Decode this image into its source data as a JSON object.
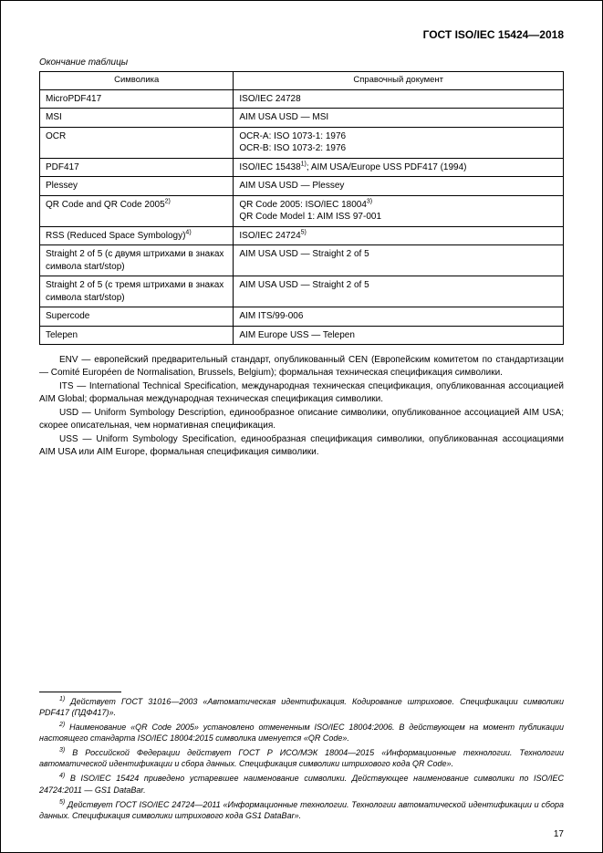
{
  "header": "ГОСТ ISO/IEC 15424—2018",
  "table_caption": "Окончание таблицы",
  "table": {
    "columns": [
      "Символика",
      "Справочный документ"
    ],
    "rows": [
      [
        "MicroPDF417",
        "ISO/IEC 24728"
      ],
      [
        "MSI",
        "AIM USA USD — MSI"
      ],
      [
        "OCR",
        "OCR-A: ISO 1073-1: 1976\nOCR-B: ISO 1073-2: 1976"
      ],
      [
        "PDF417",
        "ISO/IEC 15438<sup>1)</sup>; AIM USA/Europe USS PDF417 (1994)"
      ],
      [
        "Plessey",
        "AIM USA USD — Plessey"
      ],
      [
        "QR Code and QR Code 2005<sup>2)</sup>",
        "QR Code 2005: ISO/IEC 18004<sup>3)</sup>\nQR Code Model 1: AIM ISS 97-001"
      ],
      [
        "RSS (Reduced Space Symbology)<sup>4)</sup>",
        "ISO/IEC 24724<sup>5)</sup>"
      ],
      [
        "Straight 2 of 5 (с двумя штрихами в знаках символа start/stop)",
        "AIM USA USD — Straight 2 of 5"
      ],
      [
        "Straight 2 of 5 (с тремя штрихами в знаках символа start/stop)",
        "AIM USA USD — Straight 2 of 5"
      ],
      [
        "Supercode",
        "AIM ITS/99-006"
      ],
      [
        "Telepen",
        "AIM Europe USS — Telepen"
      ]
    ]
  },
  "body_paragraphs": [
    "ENV — европейский предварительный стандарт, опубликованный CEN (Европейским комитетом по стандартизации — Comité Européen de Normalisation, Brussels, Belgium); формальная техническая спецификация символики.",
    "ITS — International Technical Specification, международная техническая спецификация, опубликованная ассоциацией AIM Global; формальная международная техническая спецификация символики.",
    "USD — Uniform Symbology Description, единообразное описание символики, опубликованное ассоциацией AIM USA; скорее описательная, чем нормативная спецификация.",
    "USS — Uniform Symbology Specification, единообразная спецификация символики, опубликованная ассоциациями AIM USA или AIM Europe, формальная спецификация символики."
  ],
  "footnotes": [
    "<sup>1)</sup> Действует ГОСТ 31016—2003 «Автоматическая идентификация. Кодирование штриховое. Спецификации символики PDF417 (ПДФ417)».",
    "<sup>2)</sup> Наименование «QR Code 2005» установлено отмененным ISO/IEC 18004:2006. В действующем на момент публикации настоящего стандарта ISO/IEC 18004:2015 символика именуется «QR Code».",
    "<sup>3)</sup> В Российской Федерации действует ГОСТ Р ИСО/МЭК 18004—2015 «Информационные технологии. Технологии автоматической идентификации и сбора данных. Спецификация символики штрихового кода QR Code».",
    "<sup>4)</sup> В ISO/IEC 15424 приведено устаревшее наименование символики. Действующее наименование символики по ISO/IEC 24724:2011 — GS1 DataBar.",
    "<sup>5)</sup> Действует ГОСТ ISO/IEC 24724—2011 «Информационные технологии. Технологии автоматической идентификации и сбора данных. Спецификация символики штрихового кода GS1 DataBar»."
  ],
  "page_number": "17"
}
